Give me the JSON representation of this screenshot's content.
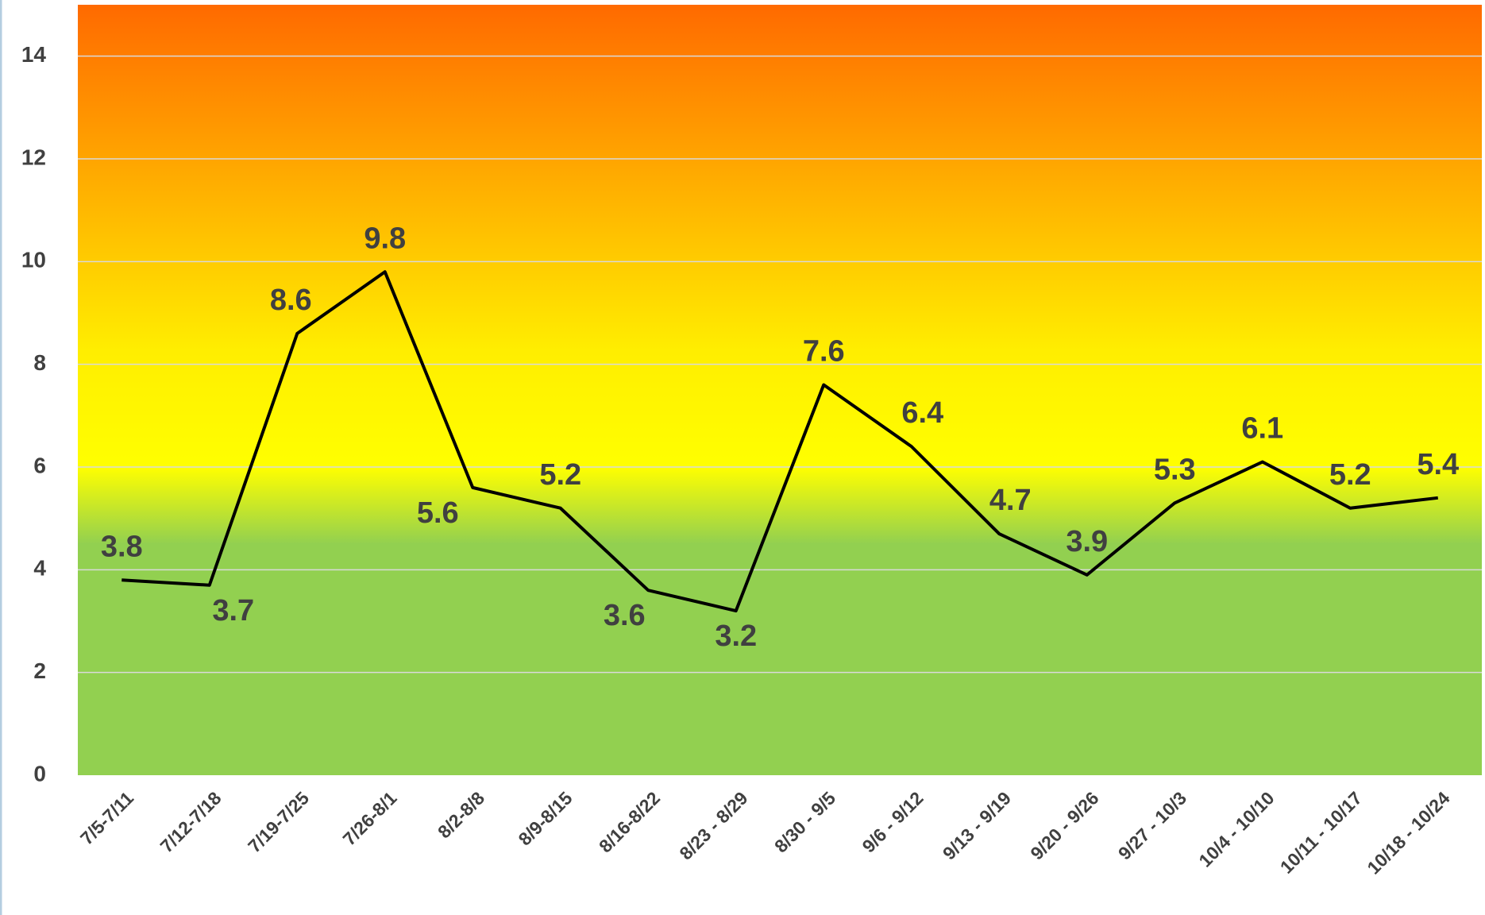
{
  "chart_data": {
    "type": "line",
    "categories": [
      "7/5-7/11",
      "7/12-7/18",
      "7/19-7/25",
      "7/26-8/1",
      "8/2-8/8",
      "8/9-8/15",
      "8/16-8/22",
      "8/23 - 8/29",
      "8/30 - 9/5",
      "9/6 - 9/12",
      "9/13 - 9/19",
      "9/20 - 9/26",
      "9/27 - 10/3",
      "10/4 - 10/10",
      "10/11 - 10/17",
      "10/18 - 10/24"
    ],
    "values": [
      3.8,
      3.7,
      8.6,
      9.8,
      5.6,
      5.2,
      3.6,
      3.2,
      7.6,
      6.4,
      4.7,
      3.9,
      5.3,
      6.1,
      5.2,
      5.4
    ],
    "color": "#000000",
    "ylim": [
      0,
      15
    ],
    "yticks": [
      0,
      2,
      4,
      6,
      8,
      10,
      12,
      14
    ],
    "grid": true
  }
}
